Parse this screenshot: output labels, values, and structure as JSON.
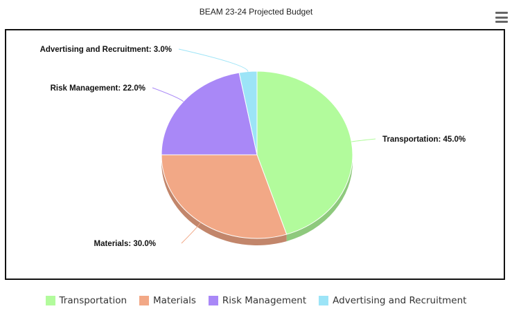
{
  "chart_data": {
    "type": "pie",
    "title": "BEAM 23-24 Projected Budget",
    "categories": [
      "Transportation",
      "Materials",
      "Risk Management",
      "Advertising and Recruitment"
    ],
    "values": [
      45.0,
      30.0,
      22.0,
      3.0
    ],
    "data_labels": [
      "Transportation: 45.0%",
      "Materials: 30.0%",
      "Risk Management: 22.0%",
      "Advertising and Recruitment: 3.0%"
    ],
    "colors": [
      "#b2fb9c",
      "#f2a886",
      "#a988f7",
      "#9ce4f7"
    ],
    "legend_position": "bottom",
    "style": "3d"
  },
  "menu": {
    "icon": "hamburger-menu-icon"
  }
}
